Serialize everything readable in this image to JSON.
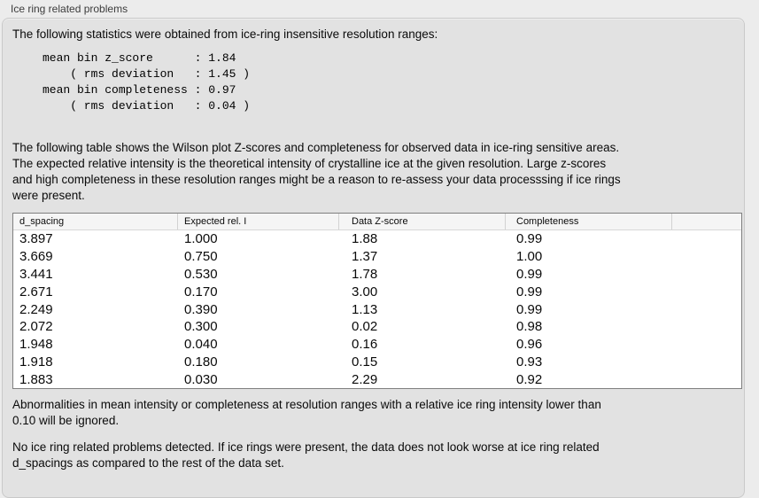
{
  "panel": {
    "title": "Ice ring related problems",
    "intro": "The following statistics were obtained from ice-ring insensitive resolution ranges:",
    "stats_block": [
      "mean bin z_score      : 1.84",
      "    ( rms deviation   : 1.45 )",
      "mean bin completeness : 0.97",
      "    ( rms deviation   : 0.04 )"
    ],
    "stats_values": {
      "mean_bin_z_score": "1.84",
      "z_score_rms_deviation": "1.45",
      "mean_bin_completeness": "0.97",
      "completeness_rms_deviation": "0.04"
    },
    "description_lines": [
      "The following table shows the Wilson plot Z-scores and completeness for observed data in ice-ring sensitive areas.",
      "The expected relative intensity is the theoretical intensity of crystalline ice at the given resolution. Large z-scores",
      "and high completeness in these resolution ranges might be a reason to re-assess your data processsing if ice rings",
      "were present."
    ],
    "note_lines": [
      "Abnormalities in mean intensity or completeness at resolution ranges with a relative ice ring intensity lower than",
      "0.10 will be ignored."
    ],
    "conclusion_lines": [
      "No ice ring related problems detected. If ice rings were present, the data does not look worse at ice ring related",
      "d_spacings as compared to the rest of the data set."
    ]
  },
  "table": {
    "columns": [
      "d_spacing",
      "Expected rel. I",
      "Data Z-score",
      "Completeness",
      ""
    ],
    "rows": [
      [
        "3.897",
        "1.000",
        "1.88",
        "0.99"
      ],
      [
        "3.669",
        "0.750",
        "1.37",
        "1.00"
      ],
      [
        "3.441",
        "0.530",
        "1.78",
        "0.99"
      ],
      [
        "2.671",
        "0.170",
        "3.00",
        "0.99"
      ],
      [
        "2.249",
        "0.390",
        "1.13",
        "0.99"
      ],
      [
        "2.072",
        "0.300",
        "0.02",
        "0.98"
      ],
      [
        "1.948",
        "0.040",
        "0.16",
        "0.96"
      ],
      [
        "1.918",
        "0.180",
        "0.15",
        "0.93"
      ],
      [
        "1.883",
        "0.030",
        "2.29",
        "0.92"
      ]
    ]
  },
  "colors": {
    "page_bg": "#ececec",
    "groupbox_bg": "#e2e2e2",
    "groupbox_border": "#c9c9c9",
    "table_border": "#7f7f7f",
    "table_header_bg": "#f5f5f5",
    "table_row_bg": "#ffffff"
  }
}
